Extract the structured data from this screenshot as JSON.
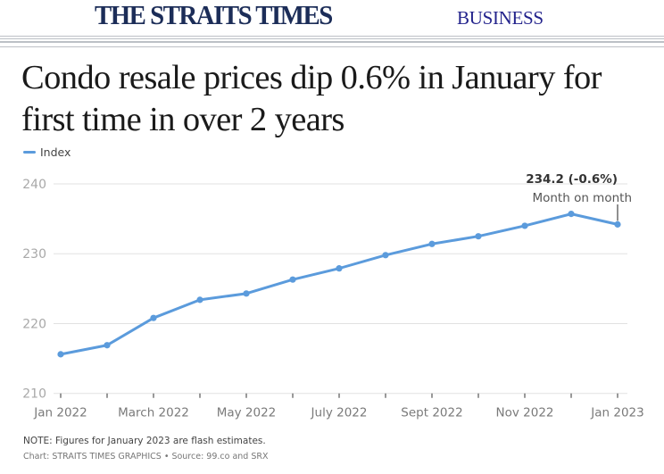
{
  "header": {
    "logo_text": "THE STRAITS TIMES",
    "section": "BUSINESS",
    "colors": {
      "logo": "#1c2d58",
      "section": "#23238c",
      "rules": "#bcc0c6"
    }
  },
  "headline": "Condo resale prices dip 0.6% in January for first time in over 2 years",
  "legend": {
    "label": "Index",
    "color": "#5b9bdc"
  },
  "chart_data": {
    "type": "line",
    "title": "Condo resale prices dip 0.6% in January for first time in over 2 years",
    "xlabel": "",
    "ylabel": "",
    "x": [
      "Jan 2022",
      "Feb 2022",
      "March 2022",
      "Apr 2022",
      "May 2022",
      "Jun 2022",
      "July 2022",
      "Aug 2022",
      "Sept 2022",
      "Oct 2022",
      "Nov 2022",
      "Dec 2022",
      "Jan 2023"
    ],
    "x_tick_labels": [
      "Jan 2022",
      "March 2022",
      "May 2022",
      "July 2022",
      "Sept 2022",
      "Nov 2022",
      "Jan 2023"
    ],
    "x_tick_label_indices": [
      0,
      2,
      4,
      6,
      8,
      10,
      12
    ],
    "series": [
      {
        "name": "Index",
        "color": "#5b9bdc",
        "values": [
          215.6,
          216.9,
          220.8,
          223.4,
          224.3,
          226.3,
          227.9,
          229.8,
          231.4,
          232.5,
          234.0,
          235.7,
          234.2
        ]
      }
    ],
    "ylim": [
      210,
      240
    ],
    "y_ticks": [
      210,
      220,
      230,
      240
    ],
    "grid": true,
    "legend_position": "top-left",
    "annotation": {
      "index": 12,
      "value_label": "234.2 (-0.6%)",
      "sub_label": "Month on month"
    }
  },
  "footer": {
    "note": "NOTE: Figures for January 2023 are flash estimates.",
    "source": "Chart: STRAITS TIMES GRAPHICS • Source: 99.co and SRX"
  }
}
